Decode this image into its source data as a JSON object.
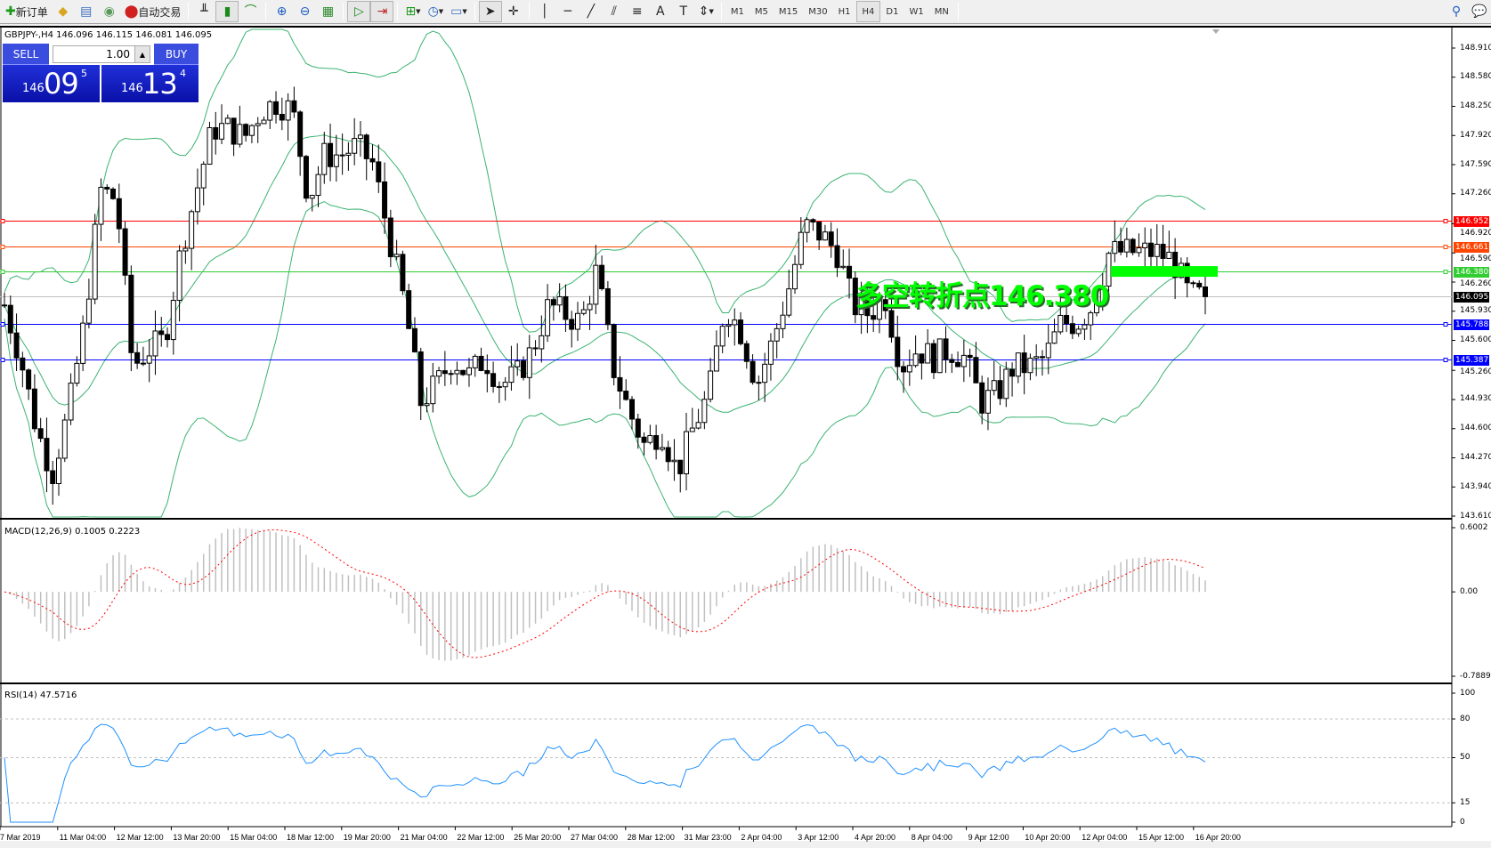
{
  "toolbar": {
    "new_order": "新订单",
    "auto_trading": "自动交易",
    "timeframes": [
      "M1",
      "M5",
      "M15",
      "M30",
      "H1",
      "H4",
      "D1",
      "W1",
      "MN"
    ],
    "active_timeframe": "H4"
  },
  "chart": {
    "info": "GBPJPY-,H4  146.096 146.115 146.081 146.095",
    "symbol": "GBPJPY-",
    "period": "H4",
    "trade_panel": {
      "sell": "SELL",
      "buy": "BUY",
      "lots": "1.00",
      "bid_big": "146",
      "bid_main": "09",
      "bid_pip": "5",
      "ask_big": "146",
      "ask_main": "13",
      "ask_pip": "4"
    },
    "annotation": "多空转折点146.380",
    "annotation_color": "#00ff00",
    "price_axis": [
      "148.910",
      "148.580",
      "148.250",
      "147.920",
      "147.590",
      "147.260",
      "146.920",
      "146.590",
      "146.260",
      "145.930",
      "145.600",
      "145.260",
      "144.930",
      "144.600",
      "144.270",
      "143.940",
      "143.610"
    ],
    "price_range": [
      143.61,
      148.91
    ],
    "bid": 146.095,
    "levels": [
      {
        "price": 146.952,
        "label": "146.952",
        "color": "#ff0000"
      },
      {
        "price": 146.661,
        "label": "146.661",
        "color": "#ff4500"
      },
      {
        "price": 146.38,
        "label": "146.380",
        "color": "#32cd32"
      },
      {
        "price": 146.095,
        "label": "146.095",
        "color": "#000000",
        "line": "#c0c0c0"
      },
      {
        "price": 145.788,
        "label": "145.788",
        "color": "#0000ff"
      },
      {
        "price": 145.387,
        "label": "145.387",
        "color": "#0000ff"
      }
    ],
    "close_path": [
      146.0,
      145.4,
      144.6,
      144.1,
      144.8,
      145.8,
      147.3,
      147.2,
      145.3,
      145.5,
      145.6,
      146.6,
      147.3,
      148.0,
      148.0,
      147.9,
      148.2,
      148.3,
      148.2,
      147.2,
      147.7,
      147.7,
      147.8,
      147.6,
      146.8,
      146.0,
      144.9,
      145.1,
      145.4,
      145.2,
      145.4,
      145.1,
      145.2,
      145.5,
      146.0,
      145.9,
      145.8,
      146.4,
      145.3,
      144.8,
      144.4,
      144.6,
      144.1,
      144.6,
      145.0,
      146.0,
      145.7,
      145.1,
      145.6,
      146.2,
      146.9,
      146.8,
      146.6,
      146.0,
      145.9,
      146.1,
      145.3,
      145.5,
      145.4,
      145.5,
      145.4,
      144.9,
      145.0,
      145.3,
      145.3,
      145.4,
      145.8,
      145.8,
      146.0,
      146.6,
      146.6,
      146.6,
      146.6,
      146.5,
      146.1,
      146.1
    ],
    "band_color": "#3cb371"
  },
  "macd": {
    "title": "MACD(12,26,9) 0.1005 0.2223",
    "axis": [
      "0.6002",
      "0.00",
      "-0.7889"
    ],
    "range": [
      -0.7889,
      0.6002
    ],
    "signal_color": "#ff0000",
    "hist_color": "#c0c0c0"
  },
  "rsi": {
    "title": "RSI(14) 47.5716",
    "axis": [
      "100",
      "80",
      "50",
      "15",
      "0"
    ],
    "levels": [
      80,
      50,
      15
    ],
    "color": "#1e90ff"
  },
  "time_axis": [
    "7 Mar 2019",
    "11 Mar 04:00",
    "12 Mar 12:00",
    "13 Mar 20:00",
    "15 Mar 04:00",
    "18 Mar 12:00",
    "19 Mar 20:00",
    "21 Mar 04:00",
    "22 Mar 12:00",
    "25 Mar 20:00",
    "27 Mar 04:00",
    "28 Mar 12:00",
    "31 Mar 23:00",
    "2 Apr 04:00",
    "3 Apr 12:00",
    "4 Apr 20:00",
    "8 Apr 04:00",
    "9 Apr 12:00",
    "10 Apr 20:00",
    "12 Apr 04:00",
    "15 Apr 12:00",
    "16 Apr 20:00"
  ]
}
